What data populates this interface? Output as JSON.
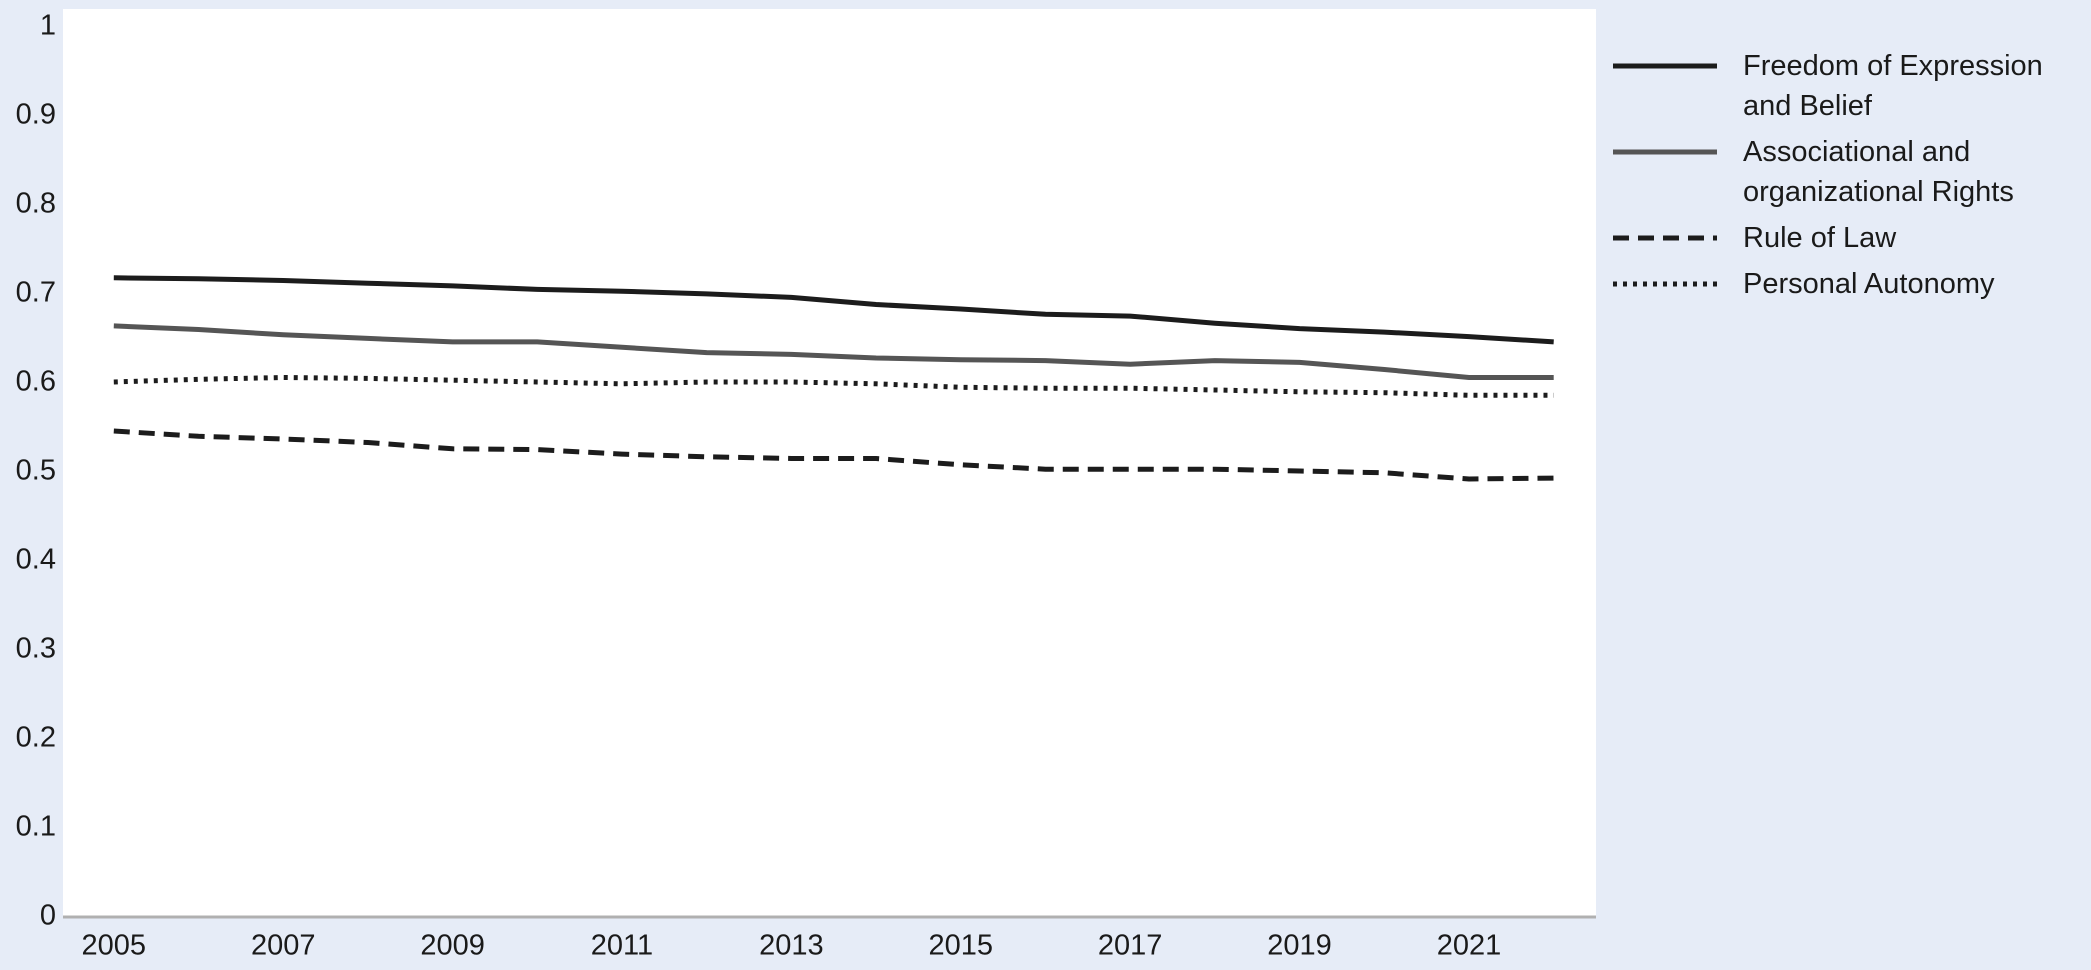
{
  "chart_data": {
    "type": "line",
    "x": [
      2005,
      2006,
      2007,
      2008,
      2009,
      2010,
      2011,
      2012,
      2013,
      2014,
      2015,
      2016,
      2017,
      2018,
      2019,
      2020,
      2021,
      2022
    ],
    "xlim": [
      2004.4,
      2022.5
    ],
    "xticks": [
      2005,
      2007,
      2009,
      2011,
      2013,
      2015,
      2017,
      2019,
      2021
    ],
    "ylim": [
      0,
      1.02
    ],
    "yticks": [
      0,
      0.1,
      0.2,
      0.3,
      0.4,
      0.5,
      0.6,
      0.7,
      0.8,
      0.9,
      1
    ],
    "grid": false,
    "legend": "right",
    "series": [
      {
        "name": "Freedom of Expression and Belief",
        "color": "#1c1c1c",
        "dash": "solid",
        "values": [
          0.718,
          0.717,
          0.715,
          0.712,
          0.709,
          0.705,
          0.703,
          0.7,
          0.696,
          0.688,
          0.683,
          0.677,
          0.675,
          0.667,
          0.661,
          0.657,
          0.652,
          0.646
        ]
      },
      {
        "name": "Associational and organizational Rights",
        "color": "#555555",
        "dash": "solid",
        "values": [
          0.664,
          0.66,
          0.654,
          0.65,
          0.646,
          0.646,
          0.64,
          0.634,
          0.632,
          0.628,
          0.626,
          0.625,
          0.621,
          0.625,
          0.623,
          0.615,
          0.606,
          0.606
        ]
      },
      {
        "name": "Rule of Law",
        "color": "#1c1c1c",
        "dash": "dashed",
        "values": [
          0.546,
          0.54,
          0.537,
          0.533,
          0.526,
          0.525,
          0.52,
          0.517,
          0.515,
          0.515,
          0.508,
          0.503,
          0.503,
          0.503,
          0.501,
          0.499,
          0.492,
          0.493
        ]
      },
      {
        "name": "Personal Autonomy",
        "color": "#1c1c1c",
        "dash": "dotted",
        "values": [
          0.601,
          0.604,
          0.606,
          0.605,
          0.603,
          0.601,
          0.599,
          0.601,
          0.601,
          0.599,
          0.595,
          0.594,
          0.594,
          0.592,
          0.59,
          0.589,
          0.586,
          0.586
        ]
      }
    ]
  }
}
